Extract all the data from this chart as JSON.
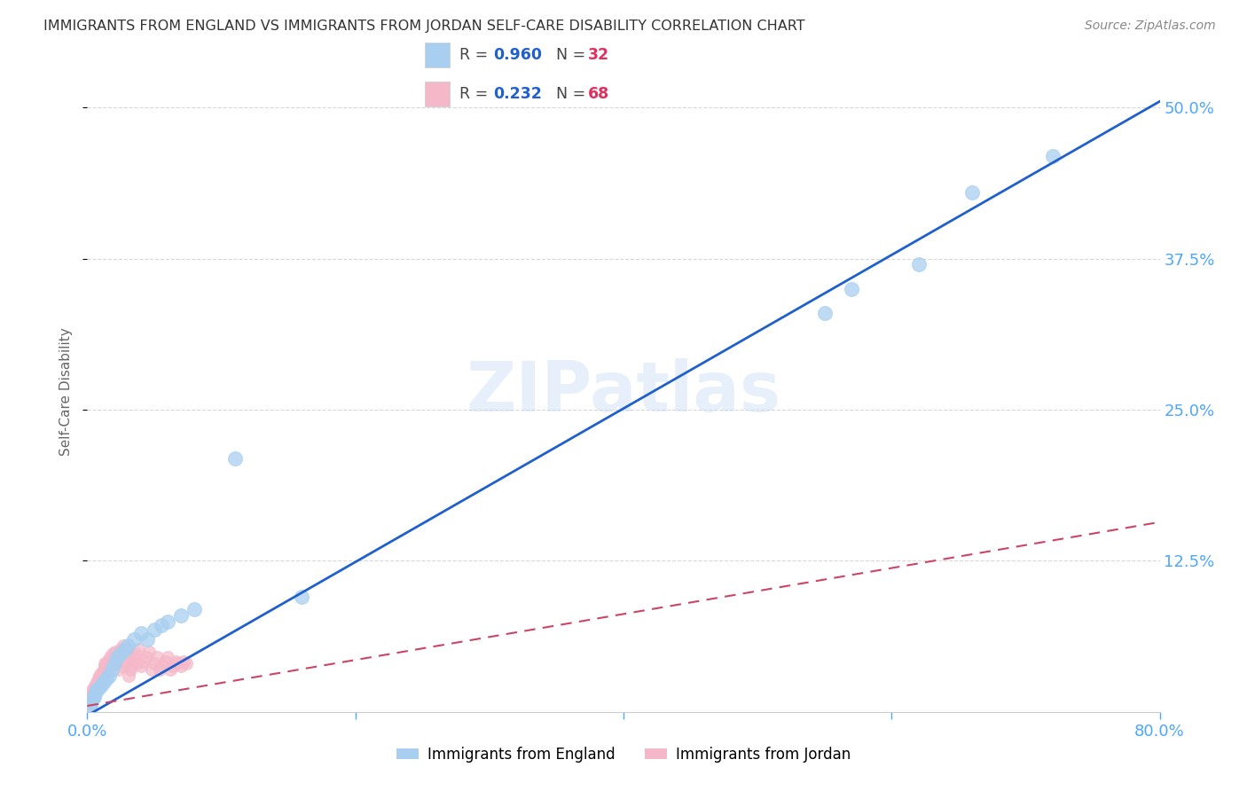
{
  "title": "IMMIGRANTS FROM ENGLAND VS IMMIGRANTS FROM JORDAN SELF-CARE DISABILITY CORRELATION CHART",
  "source": "Source: ZipAtlas.com",
  "ylabel": "Self-Care Disability",
  "xlim": [
    0.0,
    0.8
  ],
  "ylim": [
    0.0,
    0.53
  ],
  "england_R": 0.96,
  "england_N": 32,
  "jordan_R": 0.232,
  "jordan_N": 68,
  "england_color": "#a8cff0",
  "jordan_color": "#f5b8c8",
  "england_line_color": "#2060cc",
  "jordan_line_color": "#cc4466",
  "england_scatter_x": [
    0.002,
    0.003,
    0.004,
    0.005,
    0.006,
    0.007,
    0.008,
    0.01,
    0.012,
    0.014,
    0.016,
    0.018,
    0.02,
    0.022,
    0.025,
    0.028,
    0.03,
    0.035,
    0.04,
    0.045,
    0.05,
    0.055,
    0.06,
    0.07,
    0.08,
    0.11,
    0.16,
    0.55,
    0.57,
    0.62,
    0.66,
    0.72
  ],
  "england_scatter_y": [
    0.005,
    0.008,
    0.01,
    0.012,
    0.015,
    0.018,
    0.02,
    0.022,
    0.025,
    0.028,
    0.03,
    0.035,
    0.04,
    0.045,
    0.048,
    0.052,
    0.055,
    0.06,
    0.065,
    0.06,
    0.068,
    0.072,
    0.075,
    0.08,
    0.085,
    0.21,
    0.095,
    0.33,
    0.35,
    0.37,
    0.43,
    0.46
  ],
  "jordan_scatter_x": [
    0.001,
    0.002,
    0.002,
    0.003,
    0.003,
    0.004,
    0.004,
    0.005,
    0.005,
    0.006,
    0.006,
    0.007,
    0.007,
    0.008,
    0.008,
    0.009,
    0.009,
    0.01,
    0.01,
    0.011,
    0.011,
    0.012,
    0.012,
    0.013,
    0.013,
    0.014,
    0.015,
    0.016,
    0.017,
    0.018,
    0.019,
    0.02,
    0.021,
    0.022,
    0.023,
    0.024,
    0.025,
    0.026,
    0.027,
    0.028,
    0.029,
    0.03,
    0.031,
    0.032,
    0.033,
    0.034,
    0.035,
    0.036,
    0.037,
    0.038,
    0.04,
    0.042,
    0.044,
    0.046,
    0.048,
    0.05,
    0.052,
    0.054,
    0.056,
    0.058,
    0.06,
    0.062,
    0.064,
    0.066,
    0.068,
    0.07,
    0.072,
    0.074
  ],
  "jordan_scatter_y": [
    0.005,
    0.008,
    0.012,
    0.01,
    0.015,
    0.01,
    0.018,
    0.012,
    0.02,
    0.015,
    0.022,
    0.018,
    0.025,
    0.02,
    0.028,
    0.022,
    0.03,
    0.025,
    0.032,
    0.028,
    0.03,
    0.032,
    0.035,
    0.038,
    0.04,
    0.035,
    0.042,
    0.038,
    0.045,
    0.04,
    0.048,
    0.045,
    0.05,
    0.042,
    0.035,
    0.048,
    0.052,
    0.038,
    0.055,
    0.042,
    0.048,
    0.052,
    0.03,
    0.035,
    0.038,
    0.042,
    0.045,
    0.048,
    0.04,
    0.052,
    0.038,
    0.042,
    0.045,
    0.05,
    0.035,
    0.04,
    0.045,
    0.035,
    0.038,
    0.042,
    0.045,
    0.035,
    0.038,
    0.042,
    0.04,
    0.038,
    0.042,
    0.04
  ],
  "watermark": "ZIPatlas",
  "background_color": "#ffffff",
  "grid_color": "#d8d8d8",
  "tick_color": "#4da6ff",
  "england_line_slope": 0.635,
  "england_line_intercept": -0.003,
  "jordan_line_slope": 0.19,
  "jordan_line_intercept": 0.005
}
